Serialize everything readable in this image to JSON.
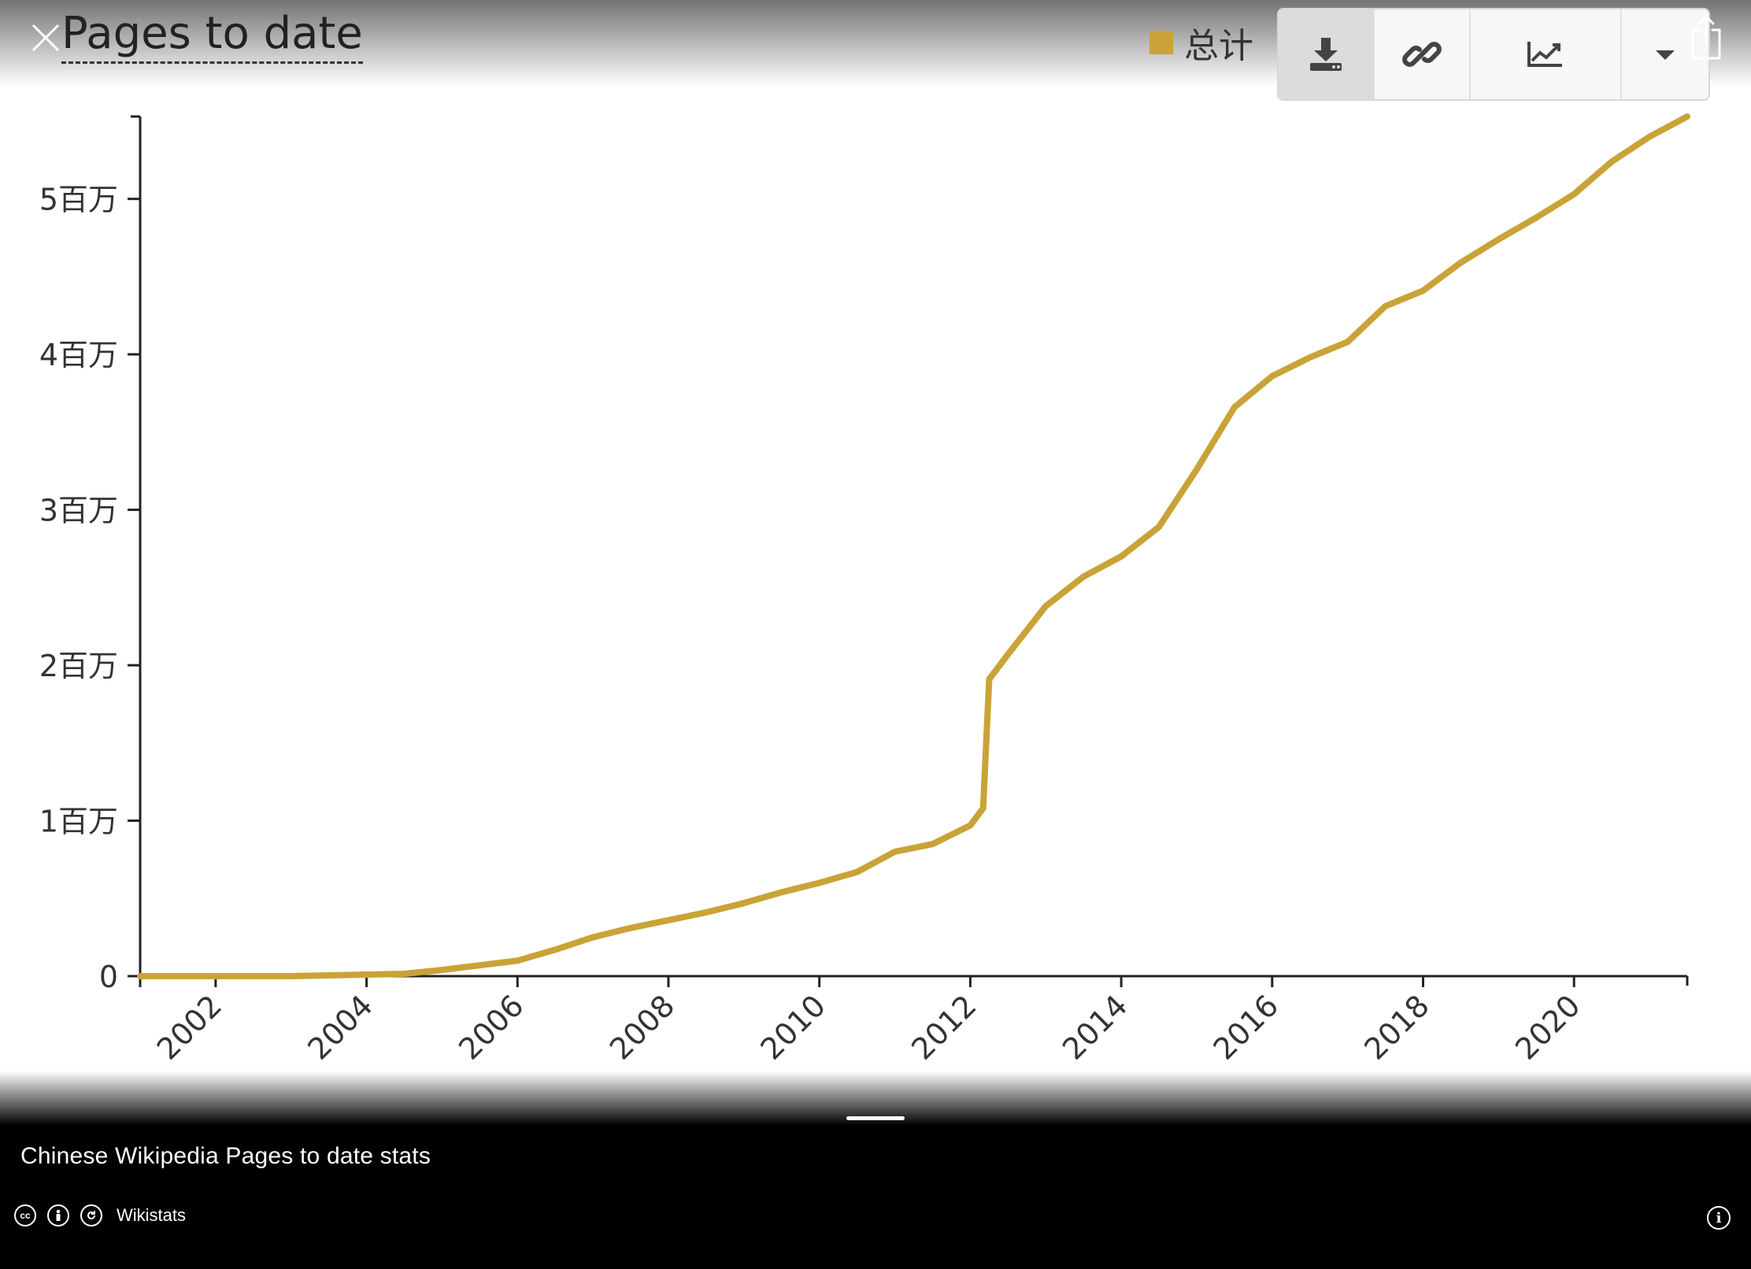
{
  "header": {
    "title": "Pages to date",
    "legend_label": "总计",
    "accent_color": "#c9a337"
  },
  "toolbar": {
    "buttons": [
      {
        "icon": "download-icon"
      },
      {
        "icon": "link-icon"
      },
      {
        "icon": "line-chart-icon"
      },
      {
        "icon": "chevron-down-icon"
      }
    ]
  },
  "icons": {
    "close": "close-icon",
    "share": "share-icon",
    "info": "info-icon"
  },
  "caption": "Chinese Wikipedia Pages to date stats",
  "footer": {
    "license_icons": [
      "cc-icon",
      "attribution-icon",
      "share-alike-icon"
    ],
    "source": "Wikistats"
  },
  "chart_data": {
    "type": "line",
    "title": "Pages to date",
    "xlabel": "",
    "ylabel": "",
    "x_ticks": [
      "2002",
      "2004",
      "2006",
      "2008",
      "2010",
      "2012",
      "2014",
      "2016",
      "2018",
      "2020"
    ],
    "y_ticks": [
      "0",
      "1百万",
      "2百万",
      "3百万",
      "4百万",
      "5百万"
    ],
    "xlim": [
      2001.0,
      2021.5
    ],
    "ylim": [
      0,
      5530000
    ],
    "series": [
      {
        "name": "总计",
        "color": "#c9a337",
        "x": [
          2001.0,
          2002.0,
          2003.0,
          2004.0,
          2004.5,
          2005.0,
          2005.5,
          2006.0,
          2006.5,
          2007.0,
          2007.5,
          2008.0,
          2008.5,
          2009.0,
          2009.5,
          2010.0,
          2010.5,
          2011.0,
          2011.5,
          2012.0,
          2012.17,
          2012.25,
          2012.5,
          2013.0,
          2013.5,
          2014.0,
          2014.5,
          2015.0,
          2015.5,
          2016.0,
          2016.5,
          2017.0,
          2017.5,
          2018.0,
          2018.5,
          2019.0,
          2019.5,
          2020.0,
          2020.5,
          2021.0,
          2021.5
        ],
        "y": [
          0,
          0,
          0,
          10000,
          15000,
          40000,
          70000,
          100000,
          170000,
          250000,
          310000,
          360000,
          410000,
          470000,
          540000,
          600000,
          670000,
          800000,
          850000,
          970000,
          1080000,
          1910000,
          2070000,
          2380000,
          2570000,
          2700000,
          2890000,
          3260000,
          3660000,
          3860000,
          3980000,
          4080000,
          4310000,
          4410000,
          4590000,
          4740000,
          4880000,
          5030000,
          5240000,
          5400000,
          5530000
        ]
      }
    ],
    "grid": false,
    "legend_position": "top-right"
  }
}
